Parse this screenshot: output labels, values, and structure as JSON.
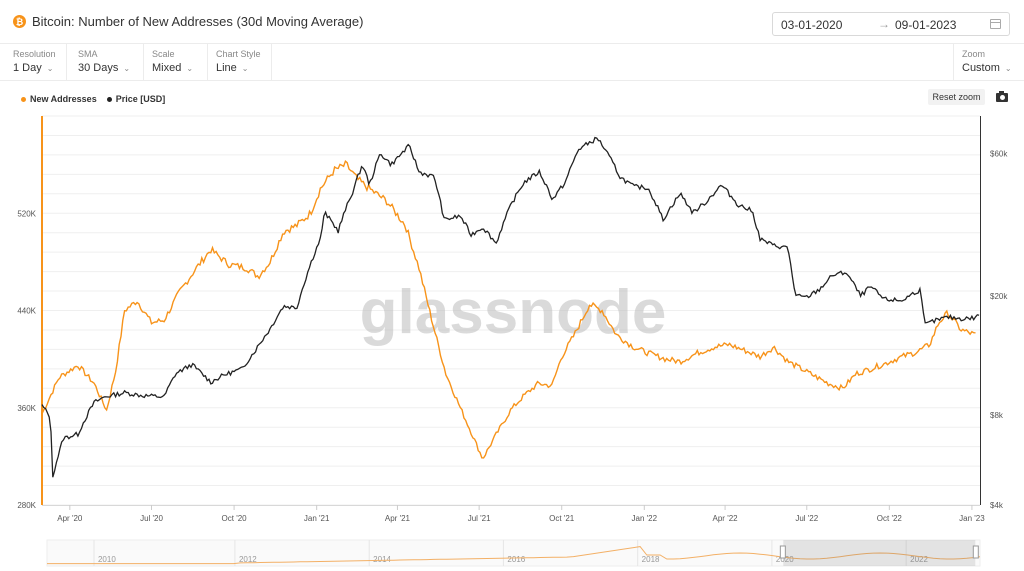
{
  "header": {
    "title": "Bitcoin: Number of New Addresses (30d Moving Average)",
    "asset_icon": "bitcoin-icon",
    "date_start": "03-01-2020",
    "date_arrow": "→",
    "date_end": "09-01-2023"
  },
  "controls": [
    {
      "label": "Resolution",
      "value": "1 Day"
    },
    {
      "label": "SMA",
      "value": "30 Days"
    },
    {
      "label": "Scale",
      "value": "Mixed"
    },
    {
      "label": "Chart Style",
      "value": "Line"
    }
  ],
  "zoom": {
    "label": "Zoom",
    "value": "Custom"
  },
  "toolbar": {
    "reset_zoom": "Reset zoom",
    "camera_icon": "camera-icon"
  },
  "legend": [
    {
      "name": "New Addresses",
      "color": "#f7931a"
    },
    {
      "name": "Price [USD]",
      "color": "#222222"
    }
  ],
  "watermark": "glassnode",
  "colors": {
    "addresses": "#f7931a",
    "price": "#222222",
    "grid": "#efefef"
  },
  "chart_data": {
    "type": "line",
    "x_ticks": [
      "Apr '20",
      "Jul '20",
      "Oct '20",
      "Jan '21",
      "Apr '21",
      "Jul '21",
      "Oct '21",
      "Jan '22",
      "Apr '22",
      "Jul '22",
      "Oct '22",
      "Jan '23"
    ],
    "x_range": [
      "2020-03-01",
      "2023-01-10"
    ],
    "y_left": {
      "ticks": [
        "280K",
        "360K",
        "440K",
        "520K"
      ],
      "tick_values": [
        280000,
        360000,
        440000,
        520000
      ],
      "range": [
        280000,
        600000
      ],
      "scale": "linear"
    },
    "y_right": {
      "ticks": [
        "$4k",
        "$8k",
        "$20k",
        "$60k"
      ],
      "tick_values": [
        4000,
        8000,
        20000,
        60000
      ],
      "range": [
        4000,
        80000
      ],
      "scale": "log"
    },
    "series": [
      {
        "name": "New Addresses",
        "axis": "left",
        "x": [
          "2020-03-01",
          "2020-03-20",
          "2020-04-10",
          "2020-04-28",
          "2020-05-12",
          "2020-05-22",
          "2020-06-01",
          "2020-06-15",
          "2020-07-01",
          "2020-07-15",
          "2020-08-01",
          "2020-08-20",
          "2020-09-05",
          "2020-09-25",
          "2020-10-15",
          "2020-10-28",
          "2020-11-10",
          "2020-11-25",
          "2020-12-10",
          "2020-12-25",
          "2021-01-05",
          "2021-01-20",
          "2021-02-03",
          "2021-02-15",
          "2021-03-01",
          "2021-03-20",
          "2021-04-10",
          "2021-04-25",
          "2021-05-10",
          "2021-05-25",
          "2021-06-10",
          "2021-06-25",
          "2021-07-05",
          "2021-07-20",
          "2021-08-05",
          "2021-08-20",
          "2021-09-05",
          "2021-09-20",
          "2021-10-01",
          "2021-10-15",
          "2021-11-01",
          "2021-11-15",
          "2021-12-01",
          "2021-12-20",
          "2022-01-05",
          "2022-01-25",
          "2022-02-10",
          "2022-03-01",
          "2022-03-20",
          "2022-04-05",
          "2022-04-20",
          "2022-05-10",
          "2022-05-25",
          "2022-06-10",
          "2022-06-25",
          "2022-07-10",
          "2022-07-25",
          "2022-08-10",
          "2022-08-25",
          "2022-09-10",
          "2022-09-25",
          "2022-10-15",
          "2022-11-01",
          "2022-11-15",
          "2022-11-25",
          "2022-12-05",
          "2022-12-20",
          "2023-01-05"
        ],
        "y": [
          355000,
          385000,
          395000,
          380000,
          358000,
          390000,
          440000,
          448000,
          430000,
          432000,
          455000,
          475000,
          490000,
          478000,
          475000,
          468000,
          480000,
          505000,
          510000,
          520000,
          540000,
          555000,
          560000,
          548000,
          540000,
          530000,
          510000,
          475000,
          430000,
          388000,
          360000,
          335000,
          318000,
          338000,
          358000,
          370000,
          380000,
          378000,
          402000,
          420000,
          445000,
          440000,
          420000,
          410000,
          405000,
          400000,
          398000,
          405000,
          410000,
          412000,
          408000,
          402000,
          410000,
          398000,
          392000,
          386000,
          380000,
          376000,
          388000,
          392000,
          396000,
          402000,
          406000,
          412000,
          430000,
          438000,
          424000,
          420000
        ]
      },
      {
        "name": "Price [USD]",
        "axis": "right",
        "x": [
          "2020-03-01",
          "2020-03-10",
          "2020-03-13",
          "2020-03-25",
          "2020-04-10",
          "2020-04-28",
          "2020-05-10",
          "2020-06-01",
          "2020-06-20",
          "2020-07-15",
          "2020-07-28",
          "2020-08-15",
          "2020-09-05",
          "2020-09-20",
          "2020-10-10",
          "2020-10-25",
          "2020-11-10",
          "2020-11-25",
          "2020-12-10",
          "2020-12-20",
          "2021-01-05",
          "2021-01-10",
          "2021-01-25",
          "2021-02-10",
          "2021-02-21",
          "2021-03-01",
          "2021-03-13",
          "2021-03-25",
          "2021-04-14",
          "2021-04-25",
          "2021-05-12",
          "2021-05-23",
          "2021-06-10",
          "2021-06-22",
          "2021-07-05",
          "2021-07-20",
          "2021-08-05",
          "2021-08-20",
          "2021-09-06",
          "2021-09-21",
          "2021-10-05",
          "2021-10-20",
          "2021-11-10",
          "2021-11-25",
          "2021-12-05",
          "2021-12-20",
          "2022-01-05",
          "2022-01-22",
          "2022-02-10",
          "2022-02-24",
          "2022-03-10",
          "2022-03-28",
          "2022-04-15",
          "2022-05-01",
          "2022-05-10",
          "2022-05-25",
          "2022-06-10",
          "2022-06-18",
          "2022-07-01",
          "2022-07-15",
          "2022-07-30",
          "2022-08-14",
          "2022-08-30",
          "2022-09-10",
          "2022-09-25",
          "2022-10-15",
          "2022-10-30",
          "2022-11-05",
          "2022-11-09",
          "2022-11-20",
          "2022-12-05",
          "2022-12-20",
          "2023-01-05",
          "2023-01-10"
        ],
        "y": [
          8600,
          7900,
          5000,
          6700,
          6900,
          8800,
          9200,
          9500,
          9300,
          9200,
          11000,
          11800,
          10300,
          10900,
          11400,
          13200,
          15500,
          18500,
          18300,
          23000,
          31000,
          38000,
          33000,
          44500,
          55000,
          47000,
          60000,
          55000,
          63500,
          52000,
          50000,
          36000,
          37000,
          32000,
          34000,
          30000,
          40000,
          48000,
          52000,
          42000,
          48000,
          62000,
          67500,
          57000,
          50000,
          46500,
          46000,
          36000,
          44000,
          38000,
          41000,
          47000,
          40500,
          38500,
          31000,
          29500,
          29000,
          20000,
          19800,
          21000,
          23500,
          24000,
          20000,
          21500,
          19500,
          19300,
          20600,
          21000,
          16000,
          16500,
          17000,
          16800,
          16900,
          17500
        ]
      }
    ],
    "navigator": {
      "x_ticks": [
        "2010",
        "2012",
        "2014",
        "2016",
        "2018",
        "2020",
        "2022"
      ],
      "selected_range": [
        "2020-03-01",
        "2023-01-10"
      ]
    }
  }
}
